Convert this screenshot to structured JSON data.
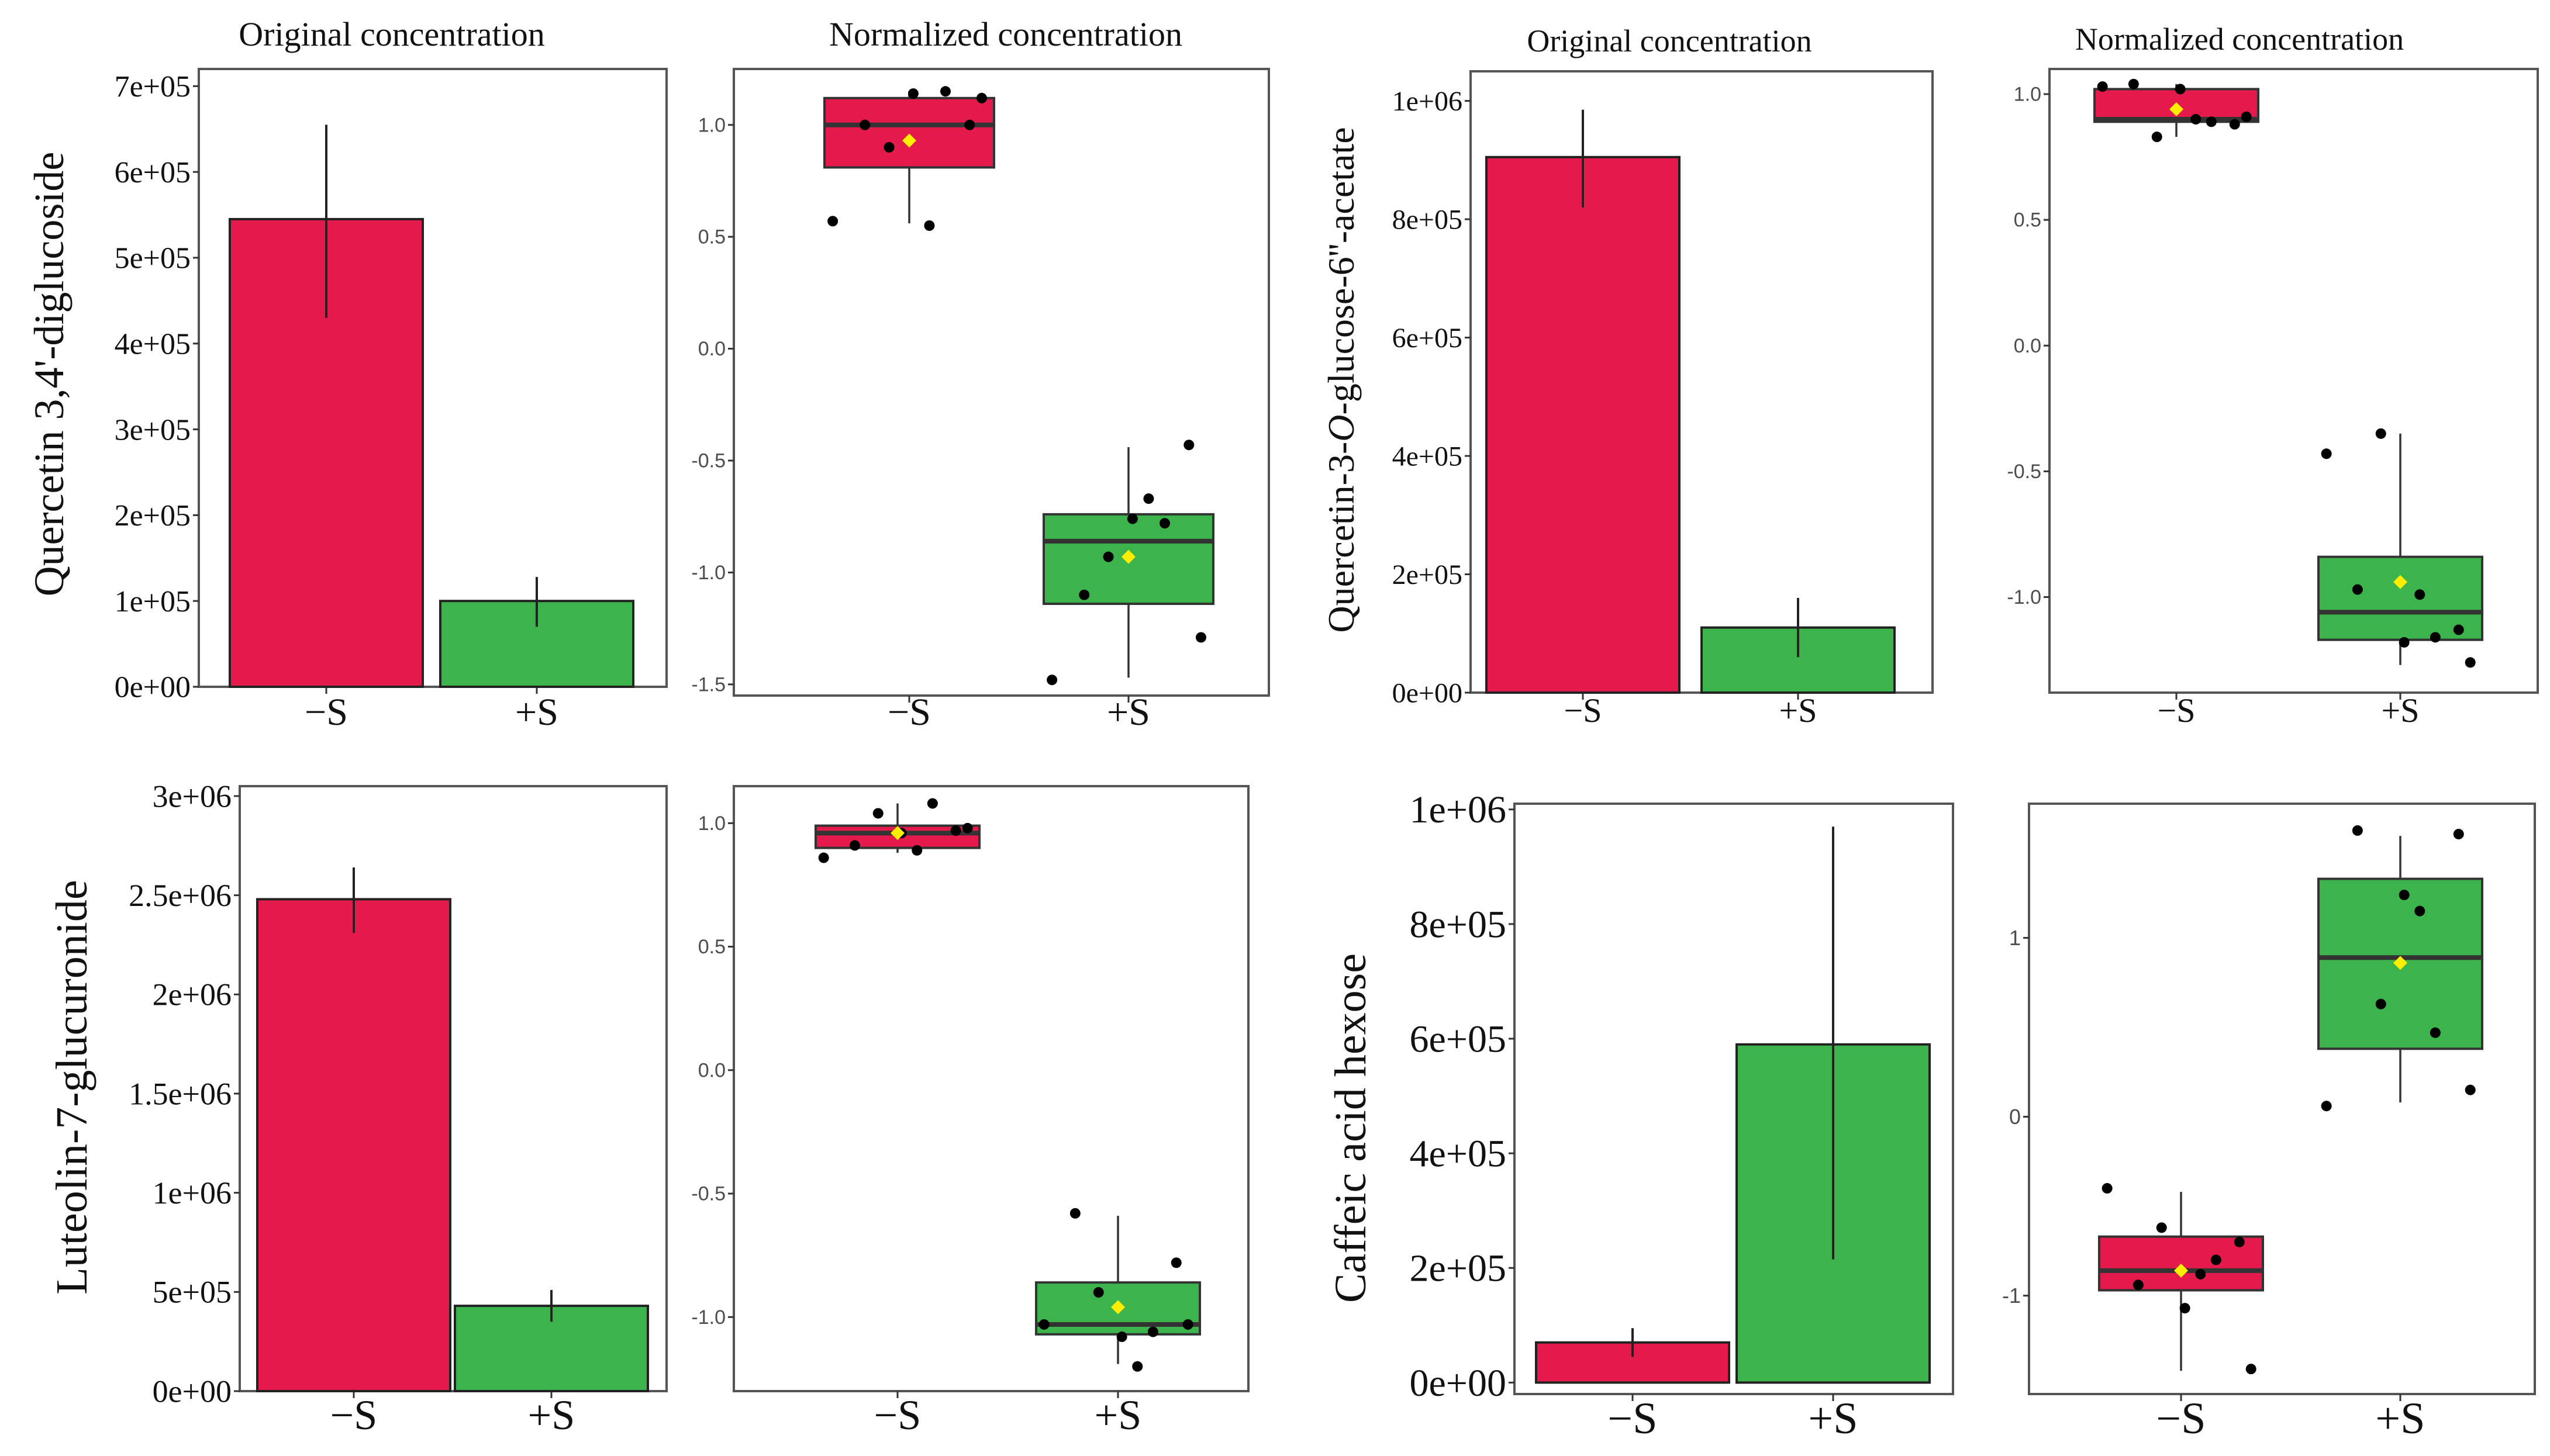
{
  "colors": {
    "minus_s": "#e31a4b",
    "plus_s": "#3cb44b",
    "mean_marker": "#ffee00",
    "point": "#000000",
    "frame": "#555555"
  },
  "column_titles": {
    "left_original": "Original concentration",
    "left_normalized": "Normalized concentration",
    "right_original": "Original concentration",
    "right_normalized": "Normalized concentration"
  },
  "row_labels": {
    "quercetin_diglucoside": "Quercetin 3,4'-diglucoside",
    "quercetin_acetate_prefix": "Quercetin-3-",
    "quercetin_acetate_italic": "O",
    "quercetin_acetate_suffix": "-glucose-6''-acetate",
    "luteolin": "Luteolin-7-glucuronide",
    "caffeic": "Caffeic acid hexose"
  },
  "chart_data": [
    {
      "id": "q34_original",
      "type": "bar",
      "compound": "Quercetin 3,4'-diglucoside",
      "panel_title": "Original concentration",
      "categories": [
        "−S",
        "+S"
      ],
      "values": [
        545000,
        100000
      ],
      "error_low": [
        430000,
        70000
      ],
      "error_high": [
        655000,
        128000
      ],
      "ylim": [
        0,
        720000
      ],
      "yticks": [
        0,
        100000,
        200000,
        300000,
        400000,
        500000,
        600000,
        700000
      ],
      "ytick_labels": [
        "0e+00",
        "1e+05",
        "2e+05",
        "3e+05",
        "4e+05",
        "5e+05",
        "6e+05",
        "7e+05"
      ]
    },
    {
      "id": "q34_normalized",
      "type": "box",
      "compound": "Quercetin 3,4'-diglucoside",
      "panel_title": "Normalized concentration",
      "categories": [
        "−S",
        "+S"
      ],
      "ylim": [
        -1.55,
        1.25
      ],
      "yticks": [
        -1.5,
        -1.0,
        -0.5,
        0.0,
        0.5,
        1.0
      ],
      "ytick_labels": [
        "-1.5",
        "-1.0",
        "-0.5",
        "0.0",
        "0.5",
        "1.0"
      ],
      "boxes": [
        {
          "q1": 0.81,
          "median": 1.0,
          "q3": 1.12,
          "whisker_low": 0.56,
          "whisker_high": 1.15,
          "mean": 0.93,
          "points": [
            0.57,
            1.0,
            1.14,
            1.15,
            0.9,
            1.0,
            0.55,
            1.12
          ]
        },
        {
          "q1": -1.14,
          "median": -0.86,
          "q3": -0.74,
          "whisker_low": -1.47,
          "whisker_high": -0.44,
          "mean": -0.93,
          "points": [
            -1.48,
            -1.1,
            -0.76,
            -0.78,
            -0.93,
            -0.43,
            -0.67,
            -1.29
          ]
        }
      ]
    },
    {
      "id": "q3o_original",
      "type": "bar",
      "compound": "Quercetin-3-O-glucose-6''-acetate",
      "panel_title": "Original concentration",
      "categories": [
        "−S",
        "+S"
      ],
      "values": [
        905000,
        110000
      ],
      "error_low": [
        820000,
        60000
      ],
      "error_high": [
        985000,
        160000
      ],
      "ylim": [
        0,
        1050000
      ],
      "yticks": [
        0,
        200000,
        400000,
        600000,
        800000,
        1000000
      ],
      "ytick_labels": [
        "0e+00",
        "2e+05",
        "4e+05",
        "6e+05",
        "8e+05",
        "1e+06"
      ]
    },
    {
      "id": "q3o_normalized",
      "type": "box",
      "compound": "Quercetin-3-O-glucose-6''-acetate",
      "panel_title": "Normalized concentration",
      "categories": [
        "−S",
        "+S"
      ],
      "ylim": [
        -1.38,
        1.1
      ],
      "yticks": [
        -1.0,
        -0.5,
        0.0,
        0.5,
        1.0
      ],
      "ytick_labels": [
        "-1.0",
        "-0.5",
        "0.0",
        "0.5",
        "1.0"
      ],
      "boxes": [
        {
          "q1": 0.89,
          "median": 0.9,
          "q3": 1.02,
          "whisker_low": 0.83,
          "whisker_high": 1.04,
          "mean": 0.94,
          "points": [
            1.03,
            1.04,
            1.02,
            0.89,
            0.83,
            0.88,
            0.9,
            0.91
          ]
        },
        {
          "q1": -1.17,
          "median": -1.06,
          "q3": -0.84,
          "whisker_low": -1.27,
          "whisker_high": -0.35,
          "mean": -0.94,
          "points": [
            -0.43,
            -0.97,
            -1.18,
            -1.16,
            -0.35,
            -1.13,
            -0.99,
            -1.26
          ]
        }
      ]
    },
    {
      "id": "lut_original",
      "type": "bar",
      "compound": "Luteolin-7-glucuronide",
      "categories": [
        "−S",
        "+S"
      ],
      "values": [
        2480000,
        430000
      ],
      "error_low": [
        2310000,
        350000
      ],
      "error_high": [
        2640000,
        510000
      ],
      "ylim": [
        0,
        3050000
      ],
      "yticks": [
        0,
        500000,
        1000000,
        1500000,
        2000000,
        2500000,
        3000000
      ],
      "ytick_labels": [
        "0e+00",
        "5e+05",
        "1e+06",
        "1.5e+06",
        "2e+06",
        "2.5e+06",
        "3e+06"
      ]
    },
    {
      "id": "lut_normalized",
      "type": "box",
      "compound": "Luteolin-7-glucuronide",
      "categories": [
        "−S",
        "+S"
      ],
      "ylim": [
        -1.3,
        1.15
      ],
      "yticks": [
        -1.0,
        -0.5,
        0.0,
        0.5,
        1.0
      ],
      "ytick_labels": [
        "-1.0",
        "-0.5",
        "0.0",
        "0.5",
        "1.0"
      ],
      "boxes": [
        {
          "q1": 0.9,
          "median": 0.96,
          "q3": 0.99,
          "whisker_low": 0.88,
          "whisker_high": 1.08,
          "mean": 0.96,
          "points": [
            0.86,
            0.91,
            0.96,
            1.08,
            1.04,
            0.97,
            0.89,
            0.98
          ]
        },
        {
          "q1": -1.07,
          "median": -1.03,
          "q3": -0.86,
          "whisker_low": -1.19,
          "whisker_high": -0.59,
          "mean": -0.96,
          "points": [
            -1.03,
            -0.58,
            -1.08,
            -1.06,
            -0.9,
            -0.78,
            -1.2,
            -1.03
          ]
        }
      ]
    },
    {
      "id": "caf_original",
      "type": "bar",
      "compound": "Caffeic acid hexose",
      "categories": [
        "−S",
        "+S"
      ],
      "values": [
        70000,
        590000
      ],
      "error_low": [
        45000,
        215000
      ],
      "error_high": [
        95000,
        970000
      ],
      "ylim": [
        -20000,
        1010000
      ],
      "yticks": [
        0,
        200000,
        400000,
        600000,
        800000,
        1000000
      ],
      "ytick_labels": [
        "0e+00",
        "2e+05",
        "4e+05",
        "6e+05",
        "8e+05",
        "1e+06"
      ]
    },
    {
      "id": "caf_normalized",
      "type": "box",
      "compound": "Caffeic acid hexose",
      "categories": [
        "−S",
        "+S"
      ],
      "ylim": [
        -1.55,
        1.75
      ],
      "yticks": [
        -1,
        0,
        1
      ],
      "ytick_labels": [
        "-1",
        "0",
        "1"
      ],
      "boxes": [
        {
          "q1": -0.97,
          "median": -0.86,
          "q3": -0.67,
          "whisker_low": -1.42,
          "whisker_high": -0.42,
          "mean": -0.86,
          "points": [
            -0.4,
            -0.94,
            -1.07,
            -0.8,
            -0.62,
            -0.7,
            -0.88,
            -1.41
          ]
        },
        {
          "q1": 0.38,
          "median": 0.89,
          "q3": 1.33,
          "whisker_low": 0.08,
          "whisker_high": 1.57,
          "mean": 0.86,
          "points": [
            0.06,
            1.6,
            1.24,
            0.47,
            0.63,
            1.58,
            1.15,
            0.15
          ]
        }
      ]
    }
  ]
}
